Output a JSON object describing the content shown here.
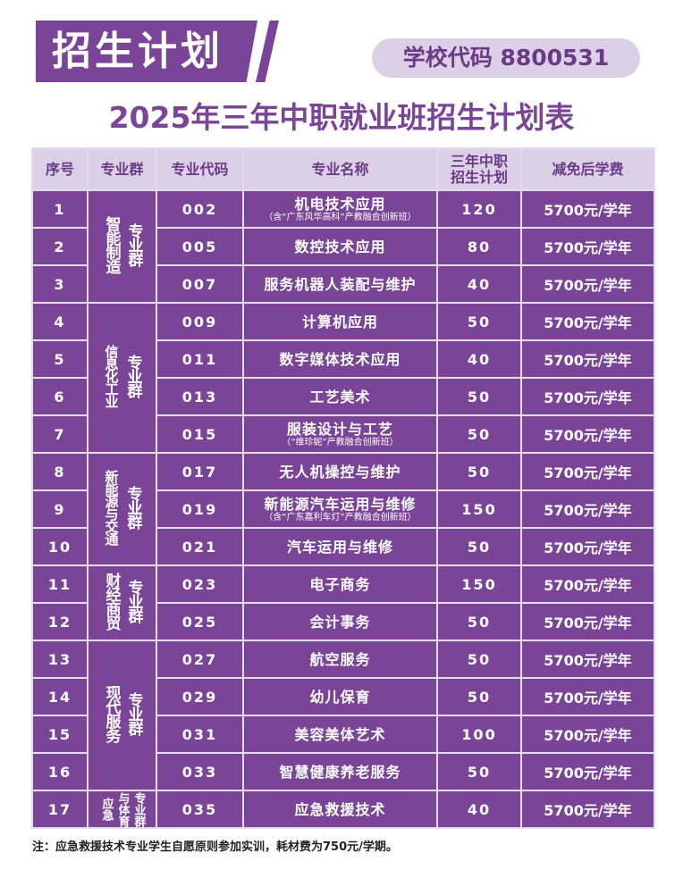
{
  "header": {
    "banner_title": "招生计划",
    "school_code_label": "学校代码 8800531",
    "subtitle": "2025年三年中职就业班招生计划表"
  },
  "colors": {
    "primary_purple": "#7b4597",
    "light_lavender": "#dcd0e6",
    "border": "#e3dbec"
  },
  "table": {
    "columns": [
      "序号",
      "专业群",
      "专业代码",
      "专业名称",
      "三年中职招生计划",
      "减免后学费"
    ],
    "column_headers": {
      "index": "序号",
      "group": "专业群",
      "code": "专业代码",
      "name": "专业名称",
      "plan_line1": "三年中职",
      "plan_line2": "招生计划",
      "fee": "减免后学费"
    },
    "groups": [
      {
        "name": "智能制造",
        "suffix": "专业群",
        "rows": 3
      },
      {
        "name": "信息化工业",
        "suffix": "专业群",
        "rows": 4
      },
      {
        "name": "新能源与交通",
        "suffix": "专业群",
        "rows": 3
      },
      {
        "name": "财经商贸",
        "suffix": "专业群",
        "rows": 2
      },
      {
        "name": "现代服务",
        "suffix": "专业群",
        "rows": 4
      },
      {
        "name_a": "应急",
        "name_b": "与体育",
        "suffix": "专业群",
        "rows": 1
      }
    ],
    "rows": [
      {
        "no": "1",
        "code": "002",
        "name": "机电技术应用",
        "note": "（含“广东风华高科”产教融合创新班）",
        "plan": "120",
        "fee": "5700元/学年"
      },
      {
        "no": "2",
        "code": "005",
        "name": "数控技术应用",
        "note": "",
        "plan": "80",
        "fee": "5700元/学年"
      },
      {
        "no": "3",
        "code": "007",
        "name": "服务机器人装配与维护",
        "note": "",
        "plan": "40",
        "fee": "5700元/学年"
      },
      {
        "no": "4",
        "code": "009",
        "name": "计算机应用",
        "note": "",
        "plan": "50",
        "fee": "5700元/学年"
      },
      {
        "no": "5",
        "code": "011",
        "name": "数字媒体技术应用",
        "note": "",
        "plan": "40",
        "fee": "5700元/学年"
      },
      {
        "no": "6",
        "code": "013",
        "name": "工艺美术",
        "note": "",
        "plan": "50",
        "fee": "5700元/学年"
      },
      {
        "no": "7",
        "code": "015",
        "name": "服装设计与工艺",
        "note": "（“维珍妮”产教融合创新班）",
        "plan": "50",
        "fee": "5700元/学年"
      },
      {
        "no": "8",
        "code": "017",
        "name": "无人机操控与维护",
        "note": "",
        "plan": "50",
        "fee": "5700元/学年"
      },
      {
        "no": "9",
        "code": "019",
        "name": "新能源汽车运用与维修",
        "note": "（含“广东嘉利车灯”产教融合创新班）",
        "plan": "150",
        "fee": "5700元/学年"
      },
      {
        "no": "10",
        "code": "021",
        "name": "汽车运用与维修",
        "note": "",
        "plan": "50",
        "fee": "5700元/学年"
      },
      {
        "no": "11",
        "code": "023",
        "name": "电子商务",
        "note": "",
        "plan": "150",
        "fee": "5700元/学年"
      },
      {
        "no": "12",
        "code": "025",
        "name": "会计事务",
        "note": "",
        "plan": "50",
        "fee": "5700元/学年"
      },
      {
        "no": "13",
        "code": "027",
        "name": "航空服务",
        "note": "",
        "plan": "50",
        "fee": "5700元/学年"
      },
      {
        "no": "14",
        "code": "029",
        "name": "幼儿保育",
        "note": "",
        "plan": "50",
        "fee": "5700元/学年"
      },
      {
        "no": "15",
        "code": "031",
        "name": "美容美体艺术",
        "note": "",
        "plan": "100",
        "fee": "5700元/学年"
      },
      {
        "no": "16",
        "code": "033",
        "name": "智慧健康养老服务",
        "note": "",
        "plan": "50",
        "fee": "5700元/学年"
      },
      {
        "no": "17",
        "code": "035",
        "name": "应急救援技术",
        "note": "",
        "plan": "40",
        "fee": "5700元/学年"
      }
    ]
  },
  "footnote": "注：应急救援技术专业学生自愿原则参加实训，耗材费为750元/学期。"
}
